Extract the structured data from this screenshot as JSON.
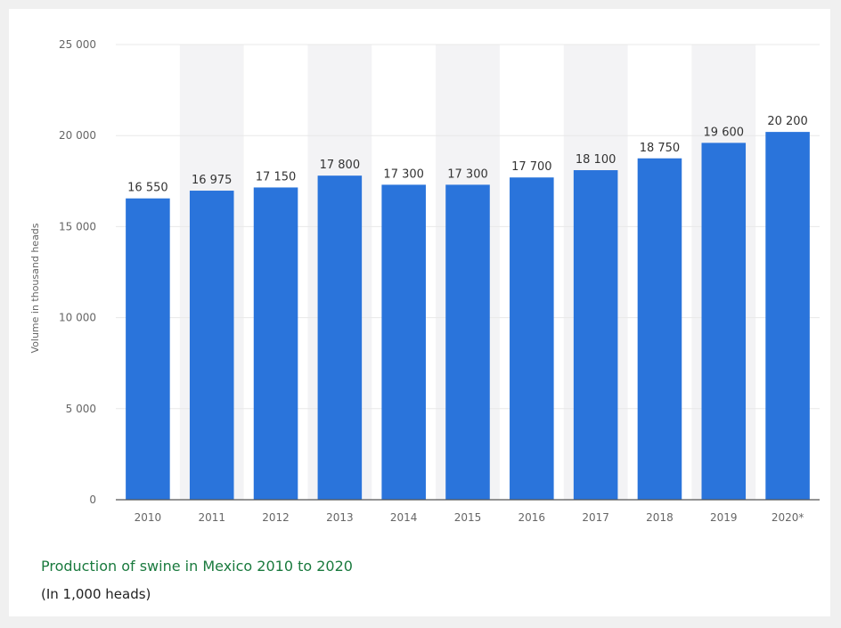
{
  "caption": {
    "title": "Production of swine in Mexico 2010 to 2020",
    "subtitle": "(In 1,000 heads)"
  },
  "colors": {
    "bar": "#2a74db",
    "stripe": "#f3f3f5",
    "grid": "#e8e8e8",
    "axis": "#555555",
    "tick_text": "#666666",
    "label_text": "#333333",
    "caption_title": "#1a7a3e"
  },
  "chart_data": {
    "type": "bar",
    "categories": [
      "2010",
      "2011",
      "2012",
      "2013",
      "2014",
      "2015",
      "2016",
      "2017",
      "2018",
      "2019",
      "2020*"
    ],
    "values": [
      16550,
      16975,
      17150,
      17800,
      17300,
      17300,
      17700,
      18100,
      18750,
      19600,
      20200
    ],
    "value_labels": [
      "16 550",
      "16 975",
      "17 150",
      "17 800",
      "17 300",
      "17 300",
      "17 700",
      "18 100",
      "18 750",
      "19 600",
      "20 200"
    ],
    "ylabel": "Volume in thousand heads",
    "ylim": [
      0,
      25000
    ],
    "yticks": [
      0,
      5000,
      10000,
      15000,
      20000,
      25000
    ],
    "ytick_labels": [
      "0",
      "5 000",
      "10 000",
      "15 000",
      "20 000",
      "25 000"
    ],
    "grid": true,
    "alternating_column_shading": true
  }
}
